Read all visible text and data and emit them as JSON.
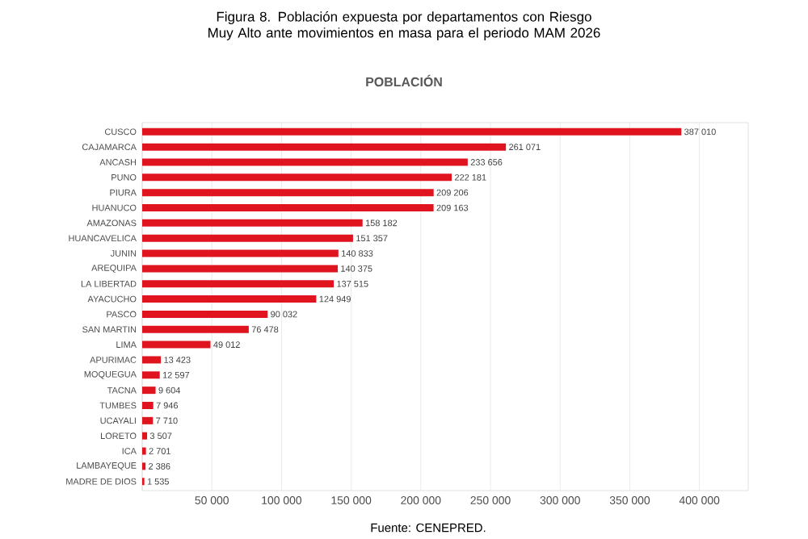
{
  "chart_data": {
    "type": "bar",
    "orientation": "horizontal",
    "title": "Figura 8. Población expuesta por departamentos con Riesgo Muy Alto ante movimientos en masa para el periodo MAM 2026",
    "subtitle": "POBLACIÓN",
    "categories": [
      "CUSCO",
      "CAJAMARCA",
      "ANCASH",
      "PUNO",
      "PIURA",
      "HUANUCO",
      "AMAZONAS",
      "HUANCAVELICA",
      "JUNIN",
      "AREQUIPA",
      "LA LIBERTAD",
      "AYACUCHO",
      "PASCO",
      "SAN MARTIN",
      "LIMA",
      "APURIMAC",
      "MOQUEGUA",
      "TACNA",
      "TUMBES",
      "UCAYALI",
      "LORETO",
      "ICA",
      "LAMBAYEQUE",
      "MADRE DE DIOS"
    ],
    "values": [
      387010,
      261071,
      233656,
      222181,
      209206,
      209163,
      158182,
      151357,
      140833,
      140375,
      137515,
      124949,
      90032,
      76478,
      49012,
      13423,
      12597,
      9604,
      7946,
      7710,
      3507,
      2701,
      2386,
      1535
    ],
    "value_labels": [
      "387 010",
      "261 071",
      "233 656",
      "222 181",
      "209 206",
      "209 163",
      "158 182",
      "151 357",
      "140 833",
      "140 375",
      "137 515",
      "124 949",
      "90 032",
      "76 478",
      "49 012",
      "13 423",
      "12 597",
      "9 604",
      "7 946",
      "7 710",
      "3 507",
      "2 701",
      "2 386",
      "1 535"
    ],
    "color": "#e0141e",
    "xlim": [
      0,
      435000
    ],
    "xticks": [
      {
        "value": 0,
        "label": null
      },
      {
        "value": 50000,
        "label": "50 000"
      },
      {
        "value": 100000,
        "label": "100 000"
      },
      {
        "value": 150000,
        "label": "150 000"
      },
      {
        "value": 200000,
        "label": "200 000"
      },
      {
        "value": 250000,
        "label": "250 000"
      },
      {
        "value": 300000,
        "label": "300 000"
      },
      {
        "value": 350000,
        "label": "350 000"
      },
      {
        "value": 400000,
        "label": "400 000"
      }
    ],
    "grid": "x",
    "annotations": [
      "Fuente: CENEPRED."
    ]
  }
}
